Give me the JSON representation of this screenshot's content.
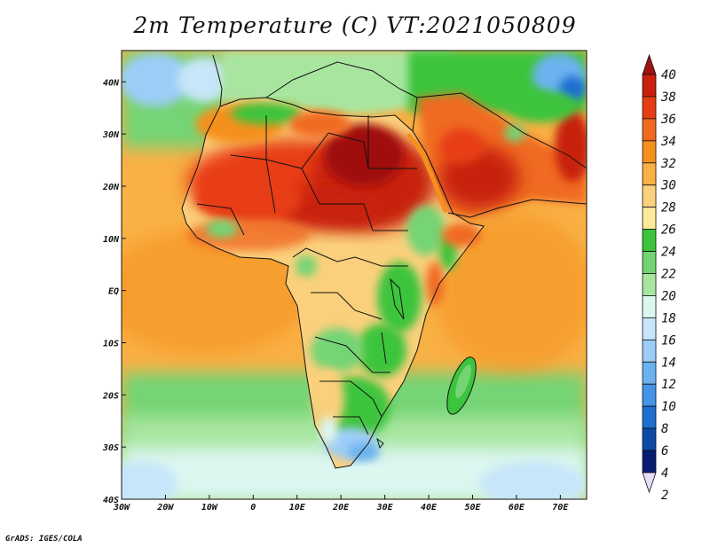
{
  "title": "2m Temperature (C) VT:2021050809",
  "credit": "GrADS: IGES/COLA",
  "map": {
    "lon_range": [
      -30,
      76
    ],
    "lat_range": [
      -40,
      46
    ],
    "lon_ticks": [
      {
        "value": -30,
        "label": "30W"
      },
      {
        "value": -20,
        "label": "20W"
      },
      {
        "value": -10,
        "label": "10W"
      },
      {
        "value": 0,
        "label": "0"
      },
      {
        "value": 10,
        "label": "10E"
      },
      {
        "value": 20,
        "label": "20E"
      },
      {
        "value": 30,
        "label": "30E"
      },
      {
        "value": 40,
        "label": "40E"
      },
      {
        "value": 50,
        "label": "50E"
      },
      {
        "value": 60,
        "label": "60E"
      },
      {
        "value": 70,
        "label": "70E"
      }
    ],
    "lat_ticks": [
      {
        "value": 40,
        "label": "40N"
      },
      {
        "value": 30,
        "label": "30N"
      },
      {
        "value": 20,
        "label": "20N"
      },
      {
        "value": 10,
        "label": "10N"
      },
      {
        "value": 0,
        "label": "EQ"
      },
      {
        "value": -10,
        "label": "10S"
      },
      {
        "value": -20,
        "label": "20S"
      },
      {
        "value": -30,
        "label": "30S"
      },
      {
        "value": -40,
        "label": "40S"
      }
    ]
  },
  "colorbar": {
    "labels": [
      "40",
      "38",
      "36",
      "34",
      "32",
      "30",
      "28",
      "26",
      "24",
      "22",
      "20",
      "18",
      "16",
      "14",
      "12",
      "10",
      "8",
      "6",
      "4",
      "2"
    ],
    "colors": [
      "#a01010",
      "#c8200c",
      "#e83c14",
      "#f06a22",
      "#f5901c",
      "#f9b045",
      "#fbd07c",
      "#fce99a",
      "#3cc43c",
      "#74d474",
      "#a8e6a0",
      "#dcf6f0",
      "#c8e6fa",
      "#9ccdf7",
      "#6cb2ef",
      "#4494e8",
      "#1e6ed2",
      "#0c4aa8",
      "#081c74",
      "#e6dcf8"
    ]
  }
}
